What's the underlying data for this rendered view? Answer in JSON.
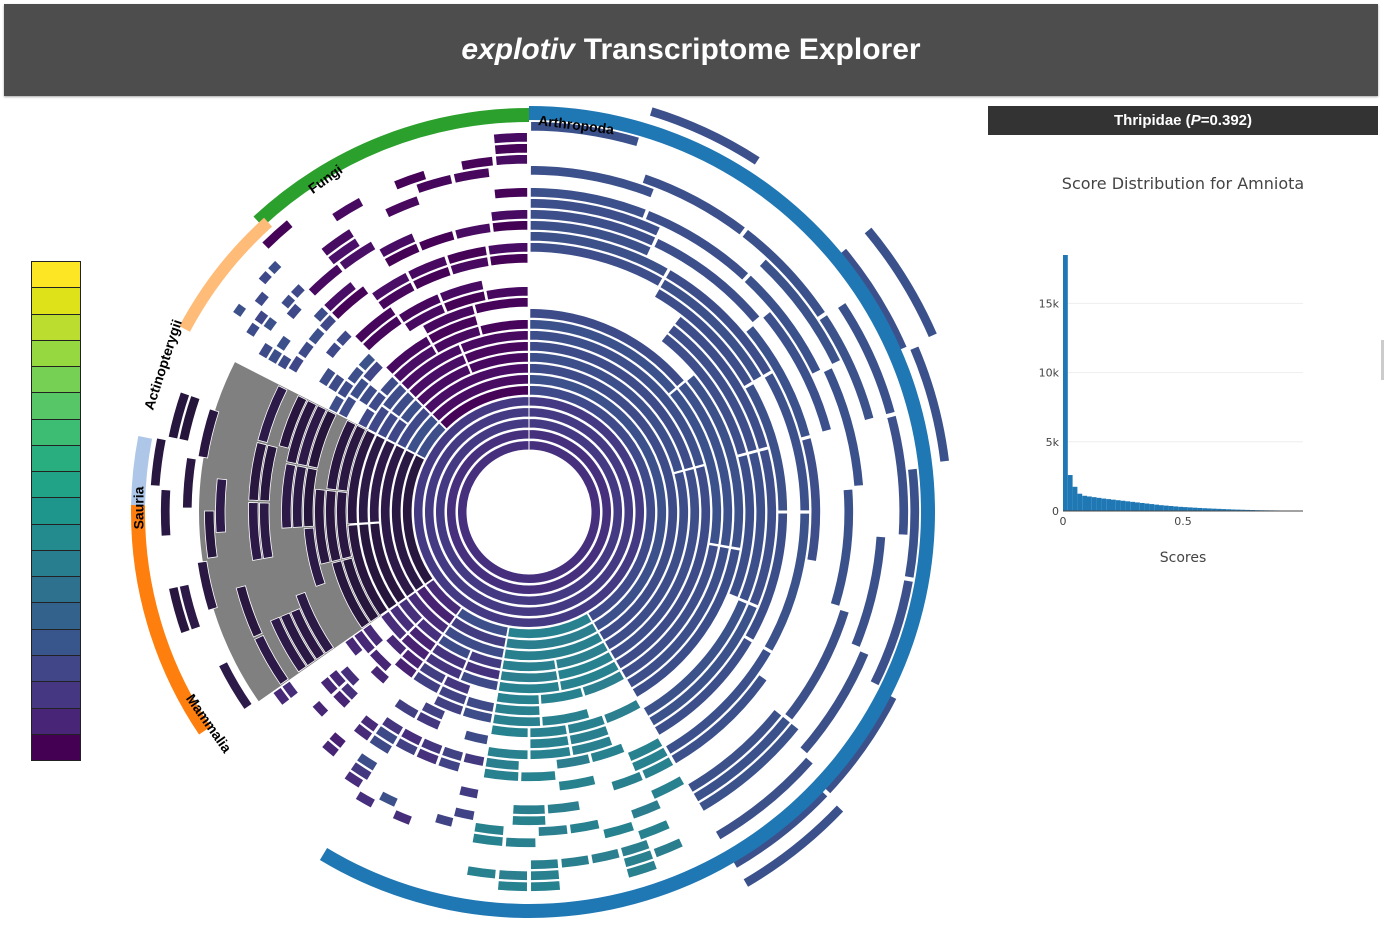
{
  "header": {
    "title_italic": "explotiv",
    "title_rest": "Transcriptome Explorer"
  },
  "info_bar": {
    "taxon": "Thripidae",
    "p_label": "P",
    "p_value": "=0.392"
  },
  "histogram": {
    "title": "Score Distribution for Amniota",
    "xlabel": "Scores",
    "color": "#1f77b4"
  },
  "chart_data": [
    {
      "type": "sunburst",
      "clades": [
        {
          "name": "Arthropoda",
          "color": "#1f77b4"
        },
        {
          "name": "Fungi",
          "color": "#2ca02c"
        },
        {
          "name": "Actinopterygii",
          "color": "#ffbb78"
        },
        {
          "name": "Sauria",
          "color": "#aec7e8"
        },
        {
          "name": "Mammalia",
          "color": "#ff7f0e"
        }
      ],
      "selected_clade": "Amniota",
      "selected_color": "#808080"
    },
    {
      "type": "bar",
      "title": "Score Distribution for Amniota",
      "xlabel": "Scores",
      "x_ticks": [
        "0",
        "0.5"
      ],
      "y_ticks": [
        "0",
        "5k",
        "10k",
        "15k"
      ],
      "xlim": [
        0,
        1
      ],
      "ylim": [
        0,
        18500
      ],
      "bin_width": 0.02,
      "values": [
        18500,
        2600,
        1750,
        1250,
        1100,
        1050,
        1000,
        950,
        900,
        860,
        820,
        780,
        740,
        700,
        660,
        620,
        580,
        540,
        500,
        460,
        420,
        390,
        360,
        330,
        300,
        280,
        260,
        240,
        220,
        200,
        185,
        170,
        155,
        140,
        125,
        110,
        100,
        90,
        80,
        70,
        60,
        55,
        50,
        45,
        40,
        35,
        30,
        25
      ]
    }
  ],
  "legend": {
    "colors": [
      "#fde725",
      "#dde318",
      "#badd2f",
      "#95d840",
      "#75d054",
      "#56c667",
      "#3dbc74",
      "#29af7f",
      "#20a386",
      "#1f968b",
      "#238a8d",
      "#287d8e",
      "#2d718e",
      "#33638d",
      "#39568c",
      "#404688",
      "#453781",
      "#482576",
      "#440154"
    ]
  }
}
